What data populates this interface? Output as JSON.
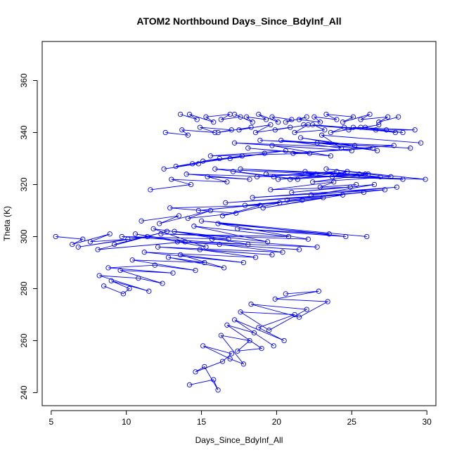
{
  "chart_data": {
    "type": "line",
    "title": "ATOM2 Northbound Days_Since_BdyInf_All",
    "xlabel": "Days_Since_BdyInf_All",
    "ylabel": "Theta (K)",
    "xlim": [
      4.4,
      30.6
    ],
    "ylim": [
      235,
      375
    ],
    "x_ticks": [
      5,
      10,
      15,
      20,
      25,
      30
    ],
    "y_ticks": [
      240,
      260,
      280,
      300,
      320,
      340,
      360
    ],
    "x_tick_labels": [
      "5",
      "10",
      "15",
      "20",
      "25",
      "30"
    ],
    "y_tick_labels": [
      "240",
      "260",
      "280",
      "300",
      "320",
      "340",
      "360"
    ],
    "grid": false,
    "legend": "none",
    "marker": "open-circle",
    "series_color": "#0000ff",
    "series": [
      {
        "x": [
          14.2,
          15.8,
          16.1,
          15.2,
          14.6,
          16.4,
          17.0,
          15.1,
          16.9,
          17.8,
          16.3,
          18.2,
          17.4,
          19.0,
          16.7,
          18.5,
          19.8,
          17.2,
          20.5,
          18.8,
          21.2,
          17.6,
          19.5,
          22.0,
          18.3,
          21.5,
          23.4,
          19.9,
          22.8,
          20.6
        ],
        "y": [
          243,
          245,
          241,
          250,
          248,
          252,
          255,
          258,
          253,
          251,
          262,
          260,
          256,
          257,
          266,
          263,
          258,
          268,
          260,
          265,
          270,
          271,
          264,
          272,
          274,
          269,
          275,
          276,
          279,
          278
        ]
      },
      {
        "x": [
          8.5,
          9.8,
          10.2,
          9.0,
          11.5,
          8.2,
          10.8,
          12.4,
          9.6,
          13.1,
          8.8,
          11.9,
          14.6,
          10.4,
          15.2,
          12.8,
          16.5,
          13.6,
          17.8,
          11.2,
          18.6,
          14.9,
          19.7,
          12.1,
          20.4,
          16.2,
          21.5,
          13.4,
          22.7,
          15.7
        ],
        "y": [
          281,
          278,
          280,
          283,
          279,
          285,
          284,
          282,
          287,
          286,
          288,
          289,
          287,
          291,
          290,
          292,
          288,
          293,
          290,
          294,
          292,
          295,
          293,
          296,
          294,
          297,
          295,
          298,
          296,
          299
        ]
      },
      {
        "x": [
          5.3,
          7.1,
          6.4,
          8.9,
          7.6,
          10.1,
          6.8,
          11.4,
          9.2,
          12.7,
          8.1,
          13.9,
          10.6,
          15.3,
          11.8,
          16.8,
          9.7,
          18.1,
          13.2,
          19.4,
          14.5,
          20.8,
          12.3,
          22.1,
          16.1,
          23.5,
          17.4,
          24.6,
          15.0,
          26.0
        ],
        "y": [
          300,
          299,
          297,
          301,
          298,
          299,
          296,
          300,
          297,
          302,
          295,
          298,
          301,
          296,
          303,
          299,
          300,
          297,
          302,
          298,
          304,
          300,
          301,
          299,
          305,
          301,
          303,
          300,
          306,
          300
        ]
      },
      {
        "x": [
          11.0,
          13.5,
          12.2,
          15.6,
          14.1,
          17.3,
          12.9,
          18.9,
          16.4,
          20.2,
          14.8,
          21.7,
          17.9,
          23.1,
          19.1,
          24.4,
          16.6,
          25.8,
          20.7,
          27.2,
          18.4,
          28.0,
          22.3,
          26.5,
          21.0,
          24.9,
          19.6,
          23.8,
          22.9,
          25.3
        ],
        "y": [
          306,
          308,
          305,
          310,
          307,
          309,
          311,
          312,
          308,
          313,
          310,
          314,
          312,
          315,
          311,
          316,
          313,
          317,
          314,
          318,
          315,
          319,
          316,
          320,
          317,
          319,
          318,
          321,
          319,
          320
        ]
      },
      {
        "x": [
          11.6,
          14.3,
          13.0,
          16.7,
          15.4,
          18.2,
          14.0,
          19.8,
          17.1,
          21.4,
          15.9,
          22.6,
          18.7,
          24.0,
          20.1,
          25.5,
          17.6,
          26.9,
          21.9,
          28.4,
          19.3,
          29.9,
          23.3,
          27.6,
          22.4,
          26.1,
          20.9,
          24.7,
          23.7,
          25.9
        ],
        "y": [
          318,
          320,
          322,
          321,
          323,
          322,
          324,
          323,
          325,
          322,
          326,
          324,
          323,
          325,
          322,
          324,
          326,
          323,
          325,
          322,
          324,
          322,
          326,
          323,
          321,
          324,
          322,
          325,
          323,
          324
        ]
      },
      {
        "x": [
          12.5,
          14.8,
          13.3,
          16.2,
          15.1,
          17.7,
          14.4,
          19.2,
          16.9,
          20.6,
          15.6,
          22.2,
          18.1,
          23.6,
          19.7,
          25.0,
          17.2,
          26.4,
          21.1,
          27.8,
          18.9,
          28.9,
          22.7,
          26.7,
          21.6,
          25.2,
          20.3,
          24.3,
          23.0,
          29.6
        ],
        "y": [
          326,
          328,
          327,
          330,
          329,
          331,
          328,
          332,
          330,
          333,
          331,
          332,
          334,
          331,
          335,
          333,
          336,
          334,
          332,
          335,
          337,
          334,
          336,
          333,
          338,
          335,
          337,
          334,
          339,
          336
        ]
      },
      {
        "x": [
          12.6,
          14.1,
          13.7,
          15.9,
          14.9,
          17.0,
          16.1,
          18.3,
          17.5,
          19.6,
          18.6,
          20.9,
          19.9,
          22.1,
          21.2,
          23.2,
          22.4,
          24.5,
          23.6,
          25.6,
          24.8,
          26.8,
          25.9,
          27.9,
          26.6,
          29.2,
          25.1,
          28.4,
          21.8,
          27.3
        ],
        "y": [
          340,
          339,
          341,
          340,
          342,
          341,
          340,
          342,
          341,
          343,
          340,
          342,
          341,
          343,
          340,
          341,
          343,
          342,
          340,
          342,
          341,
          343,
          342,
          340,
          341,
          341,
          342,
          340,
          343,
          341
        ]
      },
      {
        "x": [
          13.6,
          14.7,
          14.2,
          15.8,
          15.3,
          16.9,
          16.3,
          17.6,
          17.2,
          18.4,
          18.0,
          19.3,
          18.8,
          20.1,
          19.7,
          21.0,
          20.6,
          22.0,
          21.5,
          22.9,
          22.5,
          24.0,
          23.3,
          25.1,
          24.4,
          26.2,
          25.6,
          27.4,
          26.8,
          28.1
        ],
        "y": [
          347,
          345,
          347,
          344,
          346,
          347,
          345,
          346,
          347,
          344,
          346,
          345,
          347,
          344,
          346,
          345,
          344,
          346,
          345,
          344,
          346,
          345,
          347,
          346,
          344,
          347,
          345,
          346,
          344,
          346
        ]
      }
    ]
  }
}
